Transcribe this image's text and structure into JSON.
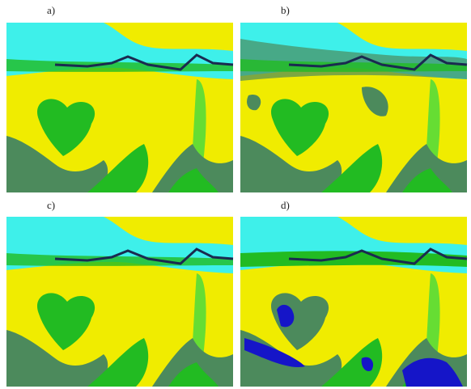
{
  "panels": [
    {
      "label": "a)"
    },
    {
      "label": "b)"
    },
    {
      "label": "c)"
    },
    {
      "label": "d)"
    }
  ]
}
